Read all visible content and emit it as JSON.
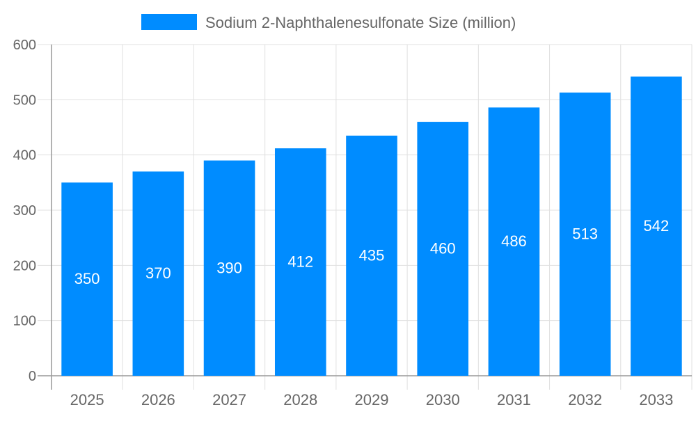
{
  "chart_data": {
    "type": "bar",
    "title": "",
    "xlabel": "",
    "ylabel": "",
    "categories": [
      "2025",
      "2026",
      "2027",
      "2028",
      "2029",
      "2030",
      "2031",
      "2032",
      "2033"
    ],
    "series": [
      {
        "name": "Sodium 2-Naphthalenesulfonate Size (million)",
        "values": [
          350,
          370,
          390,
          412,
          435,
          460,
          486,
          513,
          542
        ],
        "color": "#008cff"
      }
    ],
    "ylim": [
      0,
      600
    ],
    "yticks": [
      0,
      100,
      200,
      300,
      400,
      500,
      600
    ],
    "grid": true,
    "legend": "top-center",
    "data_labels": true
  }
}
